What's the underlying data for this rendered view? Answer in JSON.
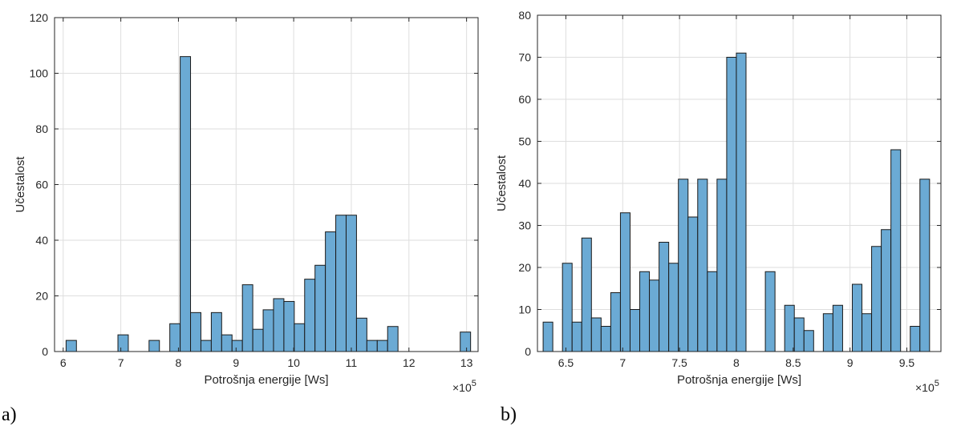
{
  "chart_data": [
    {
      "type": "bar",
      "panel_label": "a)",
      "xlabel": "Potrošnja energije [Ws]",
      "ylabel": "Učestalost",
      "exponent_label": "×10",
      "exponent_power": "5",
      "xlim": [
        5.85,
        13.2
      ],
      "ylim": [
        0,
        120
      ],
      "xticks": [
        6,
        7,
        8,
        9,
        10,
        11,
        12,
        13
      ],
      "xtick_labels": [
        "6",
        "7",
        "8",
        "9",
        "10",
        "11",
        "12",
        "13"
      ],
      "yticks": [
        0,
        20,
        40,
        60,
        80,
        100,
        120
      ],
      "ytick_labels": [
        "0",
        "20",
        "40",
        "60",
        "80",
        "100",
        "120"
      ],
      "grid": true,
      "bars": [
        {
          "x0": 6.05,
          "x1": 6.23,
          "value": 4
        },
        {
          "x0": 6.95,
          "x1": 7.13,
          "value": 6
        },
        {
          "x0": 7.49,
          "x1": 7.67,
          "value": 4
        },
        {
          "x0": 7.85,
          "x1": 8.03,
          "value": 10
        },
        {
          "x0": 8.03,
          "x1": 8.21,
          "value": 106
        },
        {
          "x0": 8.21,
          "x1": 8.39,
          "value": 14
        },
        {
          "x0": 8.39,
          "x1": 8.57,
          "value": 4
        },
        {
          "x0": 8.57,
          "x1": 8.75,
          "value": 14
        },
        {
          "x0": 8.75,
          "x1": 8.93,
          "value": 6
        },
        {
          "x0": 8.93,
          "x1": 9.11,
          "value": 4
        },
        {
          "x0": 9.11,
          "x1": 9.29,
          "value": 24
        },
        {
          "x0": 9.29,
          "x1": 9.47,
          "value": 8
        },
        {
          "x0": 9.47,
          "x1": 9.65,
          "value": 15
        },
        {
          "x0": 9.65,
          "x1": 9.83,
          "value": 19
        },
        {
          "x0": 9.83,
          "x1": 10.01,
          "value": 18
        },
        {
          "x0": 10.01,
          "x1": 10.19,
          "value": 10
        },
        {
          "x0": 10.19,
          "x1": 10.37,
          "value": 26
        },
        {
          "x0": 10.37,
          "x1": 10.55,
          "value": 31
        },
        {
          "x0": 10.55,
          "x1": 10.73,
          "value": 43
        },
        {
          "x0": 10.73,
          "x1": 10.91,
          "value": 49
        },
        {
          "x0": 10.91,
          "x1": 11.09,
          "value": 49
        },
        {
          "x0": 11.09,
          "x1": 11.27,
          "value": 12
        },
        {
          "x0": 11.27,
          "x1": 11.45,
          "value": 4
        },
        {
          "x0": 11.45,
          "x1": 11.63,
          "value": 4
        },
        {
          "x0": 11.63,
          "x1": 11.81,
          "value": 9
        },
        {
          "x0": 12.89,
          "x1": 13.07,
          "value": 7
        }
      ]
    },
    {
      "type": "bar",
      "panel_label": "b)",
      "xlabel": "Potrošnja energije [Ws]",
      "ylabel": "Učestalost",
      "exponent_label": "×10",
      "exponent_power": "5",
      "xlim": [
        6.25,
        9.8
      ],
      "ylim": [
        0,
        80
      ],
      "xticks": [
        6.5,
        7,
        7.5,
        8,
        8.5,
        9,
        9.5
      ],
      "xtick_labels": [
        "6.5",
        "7",
        "7.5",
        "8",
        "8.5",
        "9",
        "9.5"
      ],
      "yticks": [
        0,
        10,
        20,
        30,
        40,
        50,
        60,
        70,
        80
      ],
      "ytick_labels": [
        "0",
        "10",
        "20",
        "30",
        "40",
        "50",
        "60",
        "70",
        "80"
      ],
      "grid": true,
      "bars": [
        {
          "x0": 6.3,
          "x1": 6.385,
          "value": 7
        },
        {
          "x0": 6.47,
          "x1": 6.555,
          "value": 21
        },
        {
          "x0": 6.555,
          "x1": 6.64,
          "value": 7
        },
        {
          "x0": 6.64,
          "x1": 6.725,
          "value": 27
        },
        {
          "x0": 6.725,
          "x1": 6.81,
          "value": 8
        },
        {
          "x0": 6.81,
          "x1": 6.895,
          "value": 6
        },
        {
          "x0": 6.895,
          "x1": 6.98,
          "value": 14
        },
        {
          "x0": 6.98,
          "x1": 7.065,
          "value": 33
        },
        {
          "x0": 7.065,
          "x1": 7.15,
          "value": 10
        },
        {
          "x0": 7.15,
          "x1": 7.235,
          "value": 19
        },
        {
          "x0": 7.235,
          "x1": 7.32,
          "value": 17
        },
        {
          "x0": 7.32,
          "x1": 7.405,
          "value": 26
        },
        {
          "x0": 7.405,
          "x1": 7.49,
          "value": 21
        },
        {
          "x0": 7.49,
          "x1": 7.575,
          "value": 41
        },
        {
          "x0": 7.575,
          "x1": 7.66,
          "value": 32
        },
        {
          "x0": 7.66,
          "x1": 7.745,
          "value": 41
        },
        {
          "x0": 7.745,
          "x1": 7.83,
          "value": 19
        },
        {
          "x0": 7.83,
          "x1": 7.915,
          "value": 41
        },
        {
          "x0": 7.915,
          "x1": 8.0,
          "value": 70
        },
        {
          "x0": 8.0,
          "x1": 8.085,
          "value": 71
        },
        {
          "x0": 8.255,
          "x1": 8.34,
          "value": 19
        },
        {
          "x0": 8.425,
          "x1": 8.51,
          "value": 11
        },
        {
          "x0": 8.51,
          "x1": 8.595,
          "value": 8
        },
        {
          "x0": 8.595,
          "x1": 8.68,
          "value": 5
        },
        {
          "x0": 8.765,
          "x1": 8.85,
          "value": 9
        },
        {
          "x0": 8.85,
          "x1": 8.935,
          "value": 11
        },
        {
          "x0": 9.02,
          "x1": 9.105,
          "value": 16
        },
        {
          "x0": 9.105,
          "x1": 9.19,
          "value": 9
        },
        {
          "x0": 9.19,
          "x1": 9.275,
          "value": 25
        },
        {
          "x0": 9.275,
          "x1": 9.36,
          "value": 29
        },
        {
          "x0": 9.36,
          "x1": 9.445,
          "value": 48
        },
        {
          "x0": 9.53,
          "x1": 9.615,
          "value": 6
        },
        {
          "x0": 9.615,
          "x1": 9.7,
          "value": 41
        }
      ]
    }
  ]
}
